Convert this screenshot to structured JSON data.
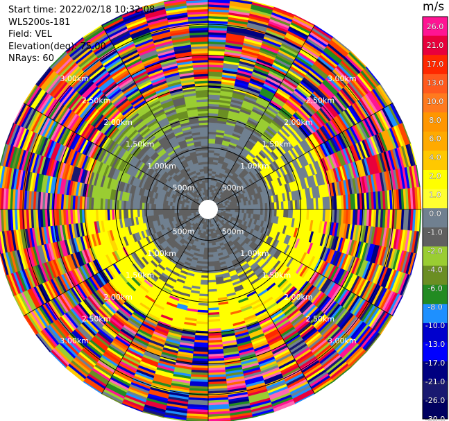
{
  "header": {
    "start_time": "Start time: 2022/02/18 10:32:08",
    "instrument": "WLS200s-181",
    "field": "Field: VEL",
    "elevation": "Elevation(deg): 75.00",
    "nrays": "NRays: 60"
  },
  "colorbar": {
    "unit": "m/s",
    "labels": [
      "26.0",
      "21.0",
      "17.0",
      "13.0",
      "10.0",
      "8.0",
      "6.0",
      "4.0",
      "2.0",
      "1.0",
      "0.0",
      "-1.0",
      "-2.0",
      "-4.0",
      "-6.0",
      "-8.0",
      "-10.0",
      "-13.0",
      "-17.0",
      "-21.0",
      "-26.0",
      "-30.0"
    ],
    "colors": [
      "#ff1493",
      "#e8003c",
      "#ff2800",
      "#ff5a1e",
      "#ff7a1e",
      "#ff9600",
      "#ffaa00",
      "#ffc800",
      "#ffff00",
      "#ffff30",
      "#708090",
      "#606060",
      "#9acd32",
      "#6b8e23",
      "#228b22",
      "#1e90ff",
      "#0000cd",
      "#0000ff",
      "#000080",
      "#191970",
      "#000060"
    ]
  },
  "chart_data": {
    "type": "polar-ppi",
    "field": "VEL",
    "units": "m/s",
    "n_rays": 60,
    "ring_labels": [
      "500m",
      "1.00km",
      "1.50km",
      "2.00km",
      "2.50km",
      "3.00km"
    ],
    "ring_ranges_km": [
      0.5,
      1.0,
      1.5,
      2.0,
      2.5,
      3.0
    ],
    "max_range_km": 3.45,
    "spoke_angles_deg": [
      0,
      30,
      60,
      90,
      120,
      150,
      180,
      210,
      240,
      270,
      300,
      330
    ],
    "velocity_zones": [
      {
        "range_km": [
          0.1,
          0.5
        ],
        "value": 0.0
      },
      {
        "range_km": [
          0.5,
          1.0
        ],
        "value": -0.5
      },
      {
        "range_km": [
          1.0,
          1.5
        ],
        "north_value": 0.3,
        "south_value": 1.5
      },
      {
        "range_km": [
          1.5,
          2.0
        ],
        "north_value": -2.0,
        "south_value": 2.0
      },
      {
        "range_km": [
          2.0,
          3.45
        ],
        "value": "mixed / noisy"
      }
    ]
  }
}
